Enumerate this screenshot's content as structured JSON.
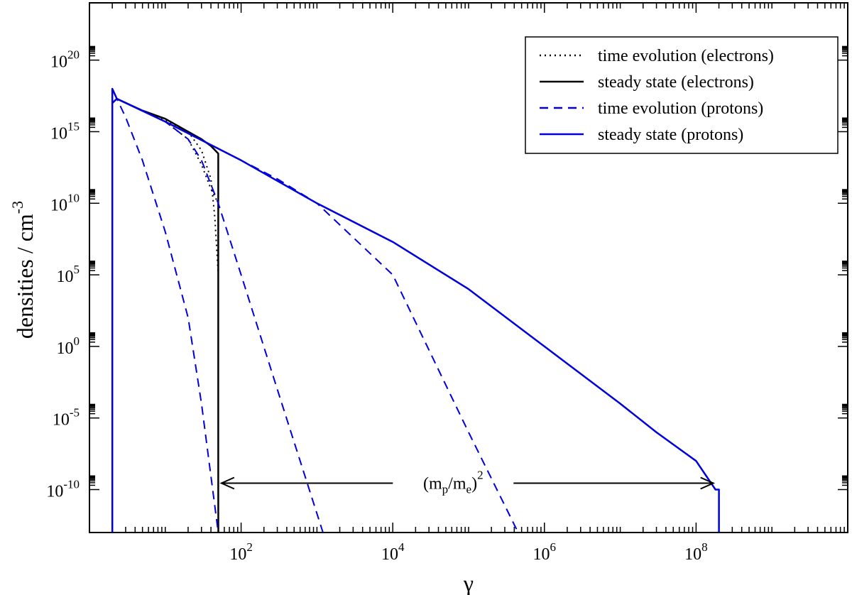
{
  "chart_data": {
    "type": "line",
    "xscale": "log",
    "yscale": "log",
    "xlabel": "γ",
    "ylabel": "densities / cm",
    "ylabel_exp": "-3",
    "xlim": [
      1,
      10000000000.0
    ],
    "ylim": [
      1e-13,
      1e+24
    ],
    "xticks": [
      {
        "value": 100,
        "base": "10",
        "exp": "2"
      },
      {
        "value": 10000,
        "base": "10",
        "exp": "4"
      },
      {
        "value": 1000000,
        "base": "10",
        "exp": "6"
      },
      {
        "value": 100000000,
        "base": "10",
        "exp": "8"
      }
    ],
    "yticks": [
      {
        "value": 1e-10,
        "base": "10",
        "exp": "-10"
      },
      {
        "value": 1e-05,
        "base": "10",
        "exp": "-5"
      },
      {
        "value": 1,
        "base": "10",
        "exp": "0"
      },
      {
        "value": 100000.0,
        "base": "10",
        "exp": "5"
      },
      {
        "value": 10000000000.0,
        "base": "10",
        "exp": "10"
      },
      {
        "value": 1000000000000000.0,
        "base": "10",
        "exp": "15"
      },
      {
        "value": 1e+20,
        "base": "10",
        "exp": "20"
      }
    ],
    "grid": false,
    "legend_position": "top-right",
    "series": [
      {
        "name": "time evolution (electrons)",
        "color": "#000000",
        "style": "dotted",
        "curves": [
          {
            "x": [
              2,
              2.3,
              5,
              10,
              20,
              30,
              40,
              50
            ],
            "y": [
              1e+17,
              2e+17,
              3e+16,
              5000000000000000.0,
              300000000000000.0,
              5000000000000.0,
              100000000000.0,
              10000000000.0
            ]
          },
          {
            "x": [
              2,
              2.3,
              5,
              10,
              20,
              30,
              40,
              45,
              50
            ],
            "y": [
              1e+17,
              2e+17,
              3e+16,
              6000000000000000.0,
              1000000000000000.0,
              50000000000000.0,
              500000000000.0,
              1000000000.0,
              100000.0
            ]
          }
        ]
      },
      {
        "name": "steady state (electrons)",
        "color": "#000000",
        "style": "solid",
        "curves": [
          {
            "x": [
              2,
              2.3,
              5,
              10,
              20,
              30,
              40,
              50,
              50,
              50.1
            ],
            "y": [
              1e+17,
              2e+17,
              3e+16,
              8000000000000000.0,
              1000000000000000.0,
              300000000000000.0,
              100000000000000.0,
              30000000000000.0,
              1e-10,
              1e-13
            ]
          }
        ]
      },
      {
        "name": "time evolution (protons)",
        "color": "#0000dd",
        "style": "dashed",
        "curves": [
          {
            "x": [
              2,
              2.3,
              3,
              5,
              10,
              20,
              30,
              50
            ],
            "y": [
              1e+17,
              2e+17,
              1e+16,
              10000000000000.0,
              100000000.0,
              100.0,
              0.0001,
              1e-13
            ]
          },
          {
            "x": [
              2,
              2.3,
              5,
              10,
              20,
              30,
              50,
              100,
              300,
              1200
            ],
            "y": [
              1e+17,
              2e+17,
              3e+16,
              5000000000000000.0,
              300000000000000.0,
              10000000000000.0,
              10000000000.0,
              100000.0,
              0.001,
              1e-13
            ]
          },
          {
            "x": [
              2,
              2.3,
              10,
              100,
              300,
              1000,
              10000,
              100000,
              450000
            ],
            "y": [
              1e+17,
              2e+17,
              5000000000000000.0,
              10000000000000.0,
              500000000000.0,
              10000000000.0,
              100000.0,
              1e-06,
              1e-13
            ]
          }
        ]
      },
      {
        "name": "steady  state (protons)",
        "color": "#0000dd",
        "style": "solid",
        "curves": [
          {
            "x": [
              2,
              2,
              2.3,
              10,
              100,
              1000,
              10000,
              100000,
              1000000,
              10000000,
              30000000,
              100000000,
              180000000,
              200000000,
              200000000
            ],
            "y": [
              1e-13,
              1e+18,
              2e+17,
              5000000000000000.0,
              10000000000000.0,
              10000000000.0,
              20000000.0,
              10000.0,
              1,
              0.0001,
              1e-06,
              1e-08,
              1e-10,
              1e-10,
              1e-13
            ]
          }
        ]
      }
    ],
    "annotation": {
      "text": "(m",
      "sub1": "p",
      "mid": "/m",
      "sub2": "e",
      "close": ")",
      "exp": "2",
      "arrow_from_x": 60,
      "arrow_to_x": 180000000,
      "arrow_y": 1e-10
    }
  }
}
